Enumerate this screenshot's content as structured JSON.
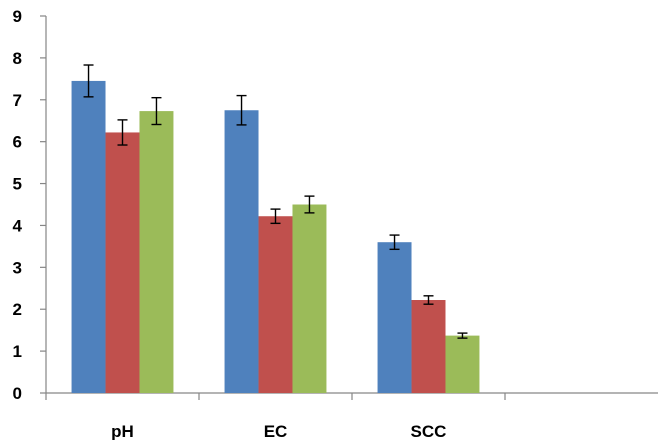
{
  "chart_data": {
    "type": "bar",
    "categories": [
      "pH",
      "EC",
      "SCC"
    ],
    "series": [
      {
        "color": "#4F81BD",
        "values": [
          7.45,
          6.75,
          3.6
        ],
        "errors": [
          0.38,
          0.35,
          0.17
        ]
      },
      {
        "color": "#C0504D",
        "values": [
          6.22,
          4.22,
          2.22
        ],
        "errors": [
          0.3,
          0.17,
          0.1
        ]
      },
      {
        "color": "#9BBB59",
        "values": [
          6.73,
          4.5,
          1.37
        ],
        "errors": [
          0.32,
          0.2,
          0.06
        ]
      }
    ],
    "ylim": [
      0,
      9
    ],
    "yticks": [
      "0",
      "1",
      "2",
      "3",
      "4",
      "5",
      "6",
      "7",
      "8",
      "9"
    ],
    "grid": false,
    "legend": "none",
    "empty_trailing_slot": true
  }
}
